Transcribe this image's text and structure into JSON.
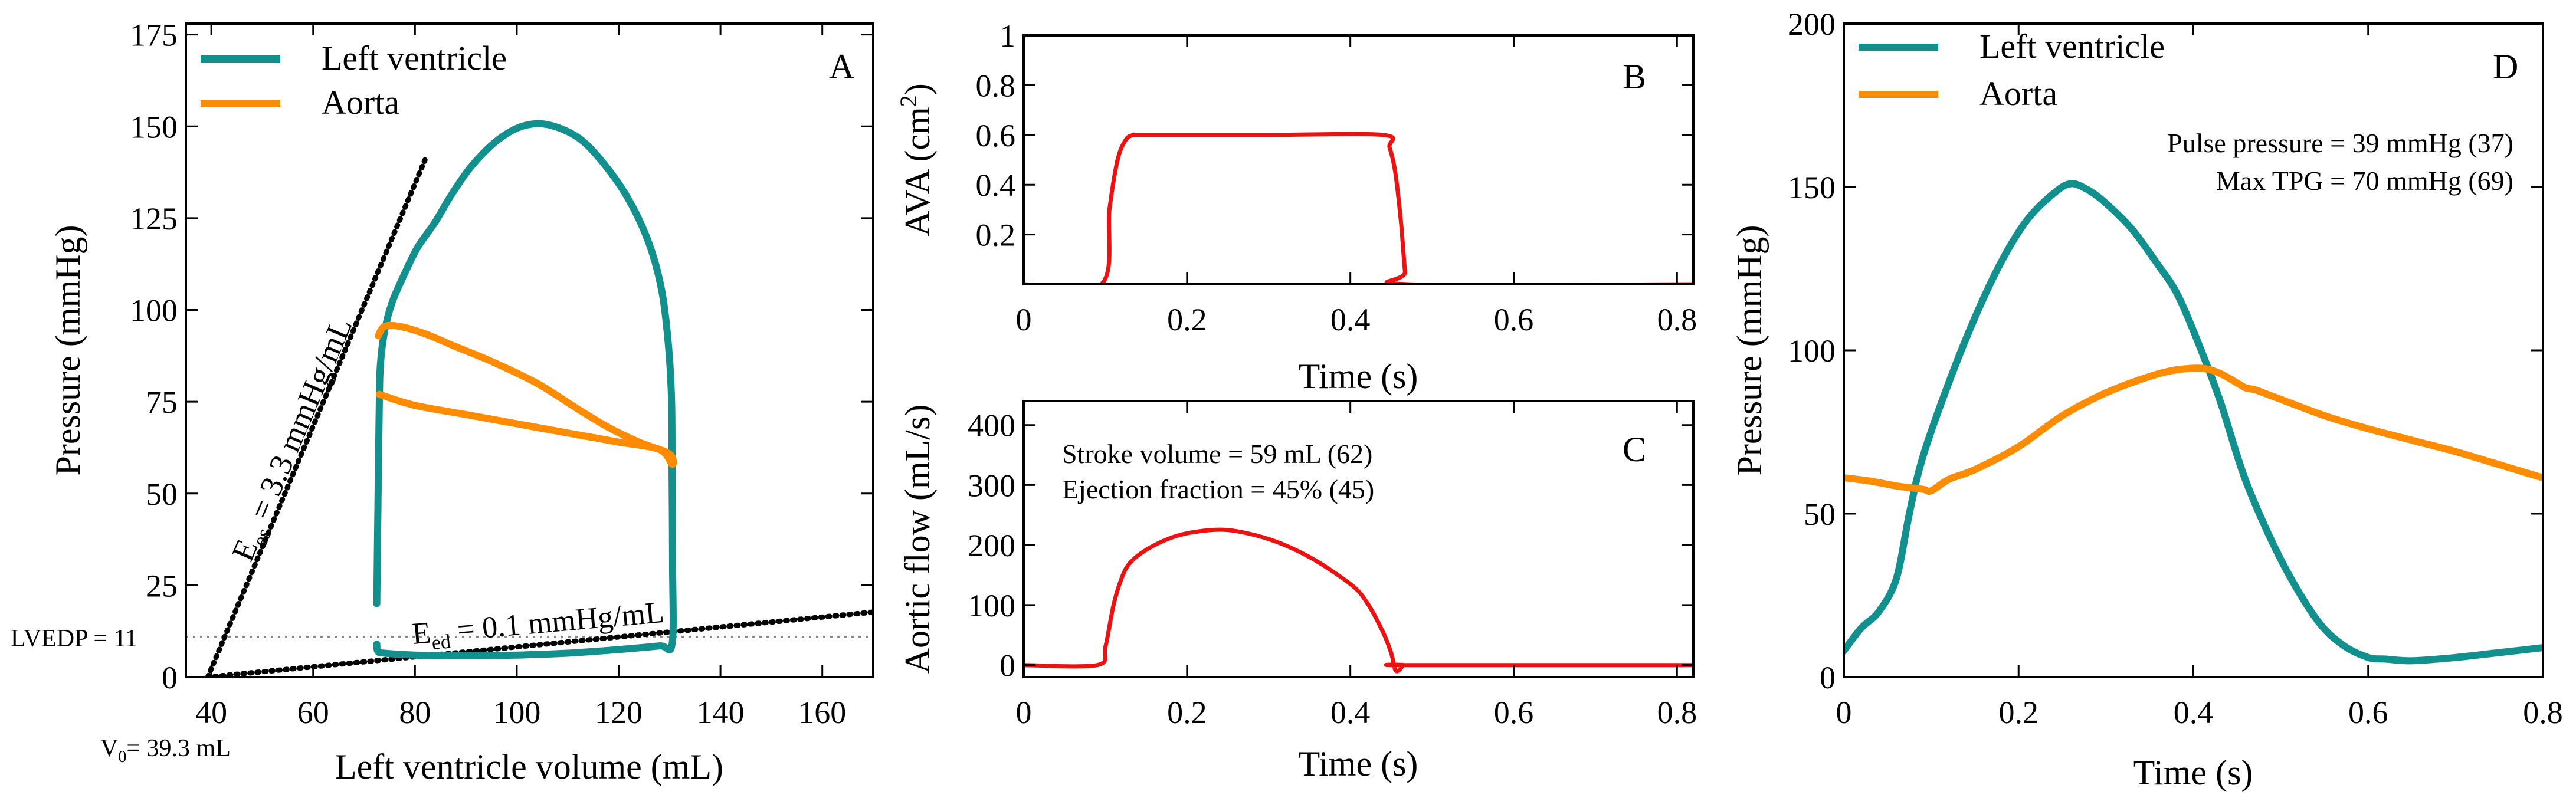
{
  "colors": {
    "lv": "#12908e",
    "aorta": "#ff8c00",
    "red": "#ee1111",
    "black": "#000000",
    "grid": "#888888"
  },
  "chart_data": [
    {
      "id": "A",
      "type": "line",
      "panel_label": "A",
      "xlabel": "Left ventricle volume (mL)",
      "ylabel": "Pressure (mmHg)",
      "xlim": [
        35,
        170
      ],
      "ylim": [
        0,
        178
      ],
      "xticks": [
        40,
        60,
        80,
        100,
        120,
        140,
        160
      ],
      "yticks": [
        0,
        25,
        50,
        75,
        100,
        125,
        150,
        175
      ],
      "legend": {
        "position": "top-left",
        "entries": [
          "Left ventricle",
          "Aorta"
        ]
      },
      "series": [
        {
          "name": "Left ventricle",
          "color_key": "lv",
          "x": [
            72.5,
            72.7,
            74,
            80,
            90,
            100,
            110,
            120,
            128,
            130.5,
            130.6,
            130.5,
            130.4,
            129.8,
            128.5,
            126,
            122,
            117,
            112,
            106,
            101,
            96,
            91,
            87,
            84,
            80.5,
            78,
            75.5,
            74,
            73.2,
            73,
            72.8,
            72.5
          ],
          "y": [
            9,
            7,
            6.5,
            6,
            5.8,
            6,
            6.5,
            7.5,
            8.5,
            9,
            30,
            55,
            75,
            90,
            105,
            118,
            130,
            140,
            147,
            150.5,
            150,
            146,
            139,
            131,
            124,
            117,
            110,
            102,
            94,
            85,
            75,
            55,
            20
          ]
        },
        {
          "name": "Aorta",
          "color_key": "aorta",
          "x": [
            72.8,
            74,
            77,
            82,
            88,
            95,
            104,
            112,
            118,
            124,
            129,
            130.5,
            130.5,
            128,
            120,
            110,
            100,
            90,
            80,
            73
          ],
          "y": [
            93,
            95.5,
            95.5,
            93.5,
            90,
            86,
            80,
            73,
            68,
            64,
            61.5,
            60,
            58,
            62,
            64,
            66.5,
            69,
            71.5,
            74,
            77
          ]
        }
      ],
      "reference_lines": [
        {
          "name": "Ees line",
          "x": [
            39.3,
            82
          ],
          "y": [
            0,
            141
          ]
        },
        {
          "name": "Eed line",
          "x": [
            39.3,
            170
          ],
          "y": [
            0,
            17.7
          ]
        }
      ],
      "lvedp": 11,
      "v0": 39.3,
      "annotations": {
        "ees": "E",
        "ees_sub": "es",
        "ees_rest": " = 3.3 mmHg/mL",
        "eed": "E",
        "eed_sub": "ed",
        "eed_rest": " = 0.1 mmHg/mL",
        "lvedp_label": "LVEDP = 11",
        "v0_label": "V",
        "v0_sub": "0",
        "v0_rest": "= 39.3 mL"
      }
    },
    {
      "id": "B",
      "type": "line",
      "panel_label": "B",
      "xlabel": "Time (s)",
      "ylabel": "AVA (cm",
      "ylabel_sup": "2",
      "ylabel_end": ")",
      "xlim": [
        0,
        0.82
      ],
      "ylim": [
        0,
        1
      ],
      "xticks": [
        0,
        0.2,
        0.4,
        0.6,
        0.8
      ],
      "xticklabels": [
        "0",
        "0.2",
        "0.4",
        "0.6",
        "0.8"
      ],
      "yticks": [
        0.2,
        0.4,
        0.6,
        0.8,
        1
      ],
      "yticklabels": [
        "0.2",
        "0.4",
        "0.6",
        "0.8",
        "1"
      ],
      "series": [
        {
          "name": "AVA",
          "color_key": "red",
          "x": [
            0,
            0.095,
            0.105,
            0.115,
            0.125,
            0.135,
            0.15,
            0.3,
            0.44,
            0.448,
            0.455,
            0.462,
            0.467,
            0.47,
            0.82
          ],
          "y": [
            0,
            0,
            0.3,
            0.5,
            0.58,
            0.6,
            0.6,
            0.6,
            0.6,
            0.55,
            0.45,
            0.25,
            0.05,
            0,
            0
          ]
        }
      ]
    },
    {
      "id": "C",
      "type": "line",
      "panel_label": "C",
      "xlabel": "Time (s)",
      "ylabel": "Aortic flow (mL/s)",
      "xlim": [
        0,
        0.82
      ],
      "ylim": [
        -20,
        440
      ],
      "xticks": [
        0,
        0.2,
        0.4,
        0.6,
        0.8
      ],
      "xticklabels": [
        "0",
        "0.2",
        "0.4",
        "0.6",
        "0.8"
      ],
      "yticks": [
        0,
        100,
        200,
        300,
        400
      ],
      "yticklabels": [
        "0",
        "100",
        "200",
        "300",
        "400"
      ],
      "annotations": [
        "Stroke volume = 59 mL (62)",
        "Ejection fraction = 45% (45)"
      ],
      "series": [
        {
          "name": "Aortic flow",
          "color_key": "red",
          "x": [
            0,
            0.09,
            0.1,
            0.11,
            0.12,
            0.13,
            0.15,
            0.18,
            0.21,
            0.25,
            0.3,
            0.35,
            0.4,
            0.42,
            0.44,
            0.45,
            0.455,
            0.46,
            0.465,
            0.47,
            0.82
          ],
          "y": [
            0,
            0,
            30,
            100,
            145,
            170,
            192,
            212,
            222,
            225,
            210,
            180,
            135,
            105,
            55,
            20,
            -8,
            -8,
            0,
            0,
            0
          ]
        }
      ]
    },
    {
      "id": "D",
      "type": "line",
      "panel_label": "D",
      "xlabel": "Time (s)",
      "ylabel": "Pressure (mmHg)",
      "xlim": [
        0,
        0.8
      ],
      "ylim": [
        0,
        200
      ],
      "xticks": [
        0,
        0.2,
        0.4,
        0.6,
        0.8
      ],
      "xticklabels": [
        "0",
        "0.2",
        "0.4",
        "0.6",
        "0.8"
      ],
      "yticks": [
        0,
        50,
        100,
        150,
        200
      ],
      "yticklabels": [
        "0",
        "50",
        "100",
        "150",
        "200"
      ],
      "legend": {
        "position": "top-left",
        "entries": [
          "Left ventricle",
          "Aorta"
        ]
      },
      "annotations": [
        "Pulse pressure = 39 mmHg (37)",
        "Max TPG = 70 mmHg (69)"
      ],
      "series": [
        {
          "name": "Left ventricle",
          "color_key": "lv",
          "x": [
            0,
            0.02,
            0.04,
            0.06,
            0.075,
            0.09,
            0.12,
            0.15,
            0.18,
            0.21,
            0.24,
            0.26,
            0.28,
            0.3,
            0.33,
            0.36,
            0.38,
            0.4,
            0.43,
            0.46,
            0.5,
            0.54,
            0.57,
            0.6,
            0.62,
            0.65,
            0.7,
            0.75,
            0.8
          ],
          "y": [
            8,
            15,
            20,
            30,
            50,
            67,
            90,
            110,
            127,
            140,
            148,
            151,
            149,
            145,
            137,
            126,
            118,
            106,
            85,
            60,
            36,
            18,
            10,
            6,
            5.5,
            5,
            6,
            7.5,
            9
          ]
        },
        {
          "name": "Aorta",
          "color_key": "aorta",
          "x": [
            0,
            0.03,
            0.06,
            0.09,
            0.1,
            0.12,
            0.15,
            0.2,
            0.25,
            0.3,
            0.35,
            0.38,
            0.41,
            0.43,
            0.45,
            0.46,
            0.47,
            0.48,
            0.5,
            0.55,
            0.6,
            0.65,
            0.7,
            0.75,
            0.8
          ],
          "y": [
            61,
            60,
            58.5,
            57.5,
            57,
            60.5,
            63.5,
            70.5,
            80,
            87,
            92,
            94,
            94.5,
            93,
            90,
            88.5,
            88,
            87,
            85,
            80,
            76,
            72.5,
            69,
            65,
            61
          ]
        }
      ]
    }
  ]
}
